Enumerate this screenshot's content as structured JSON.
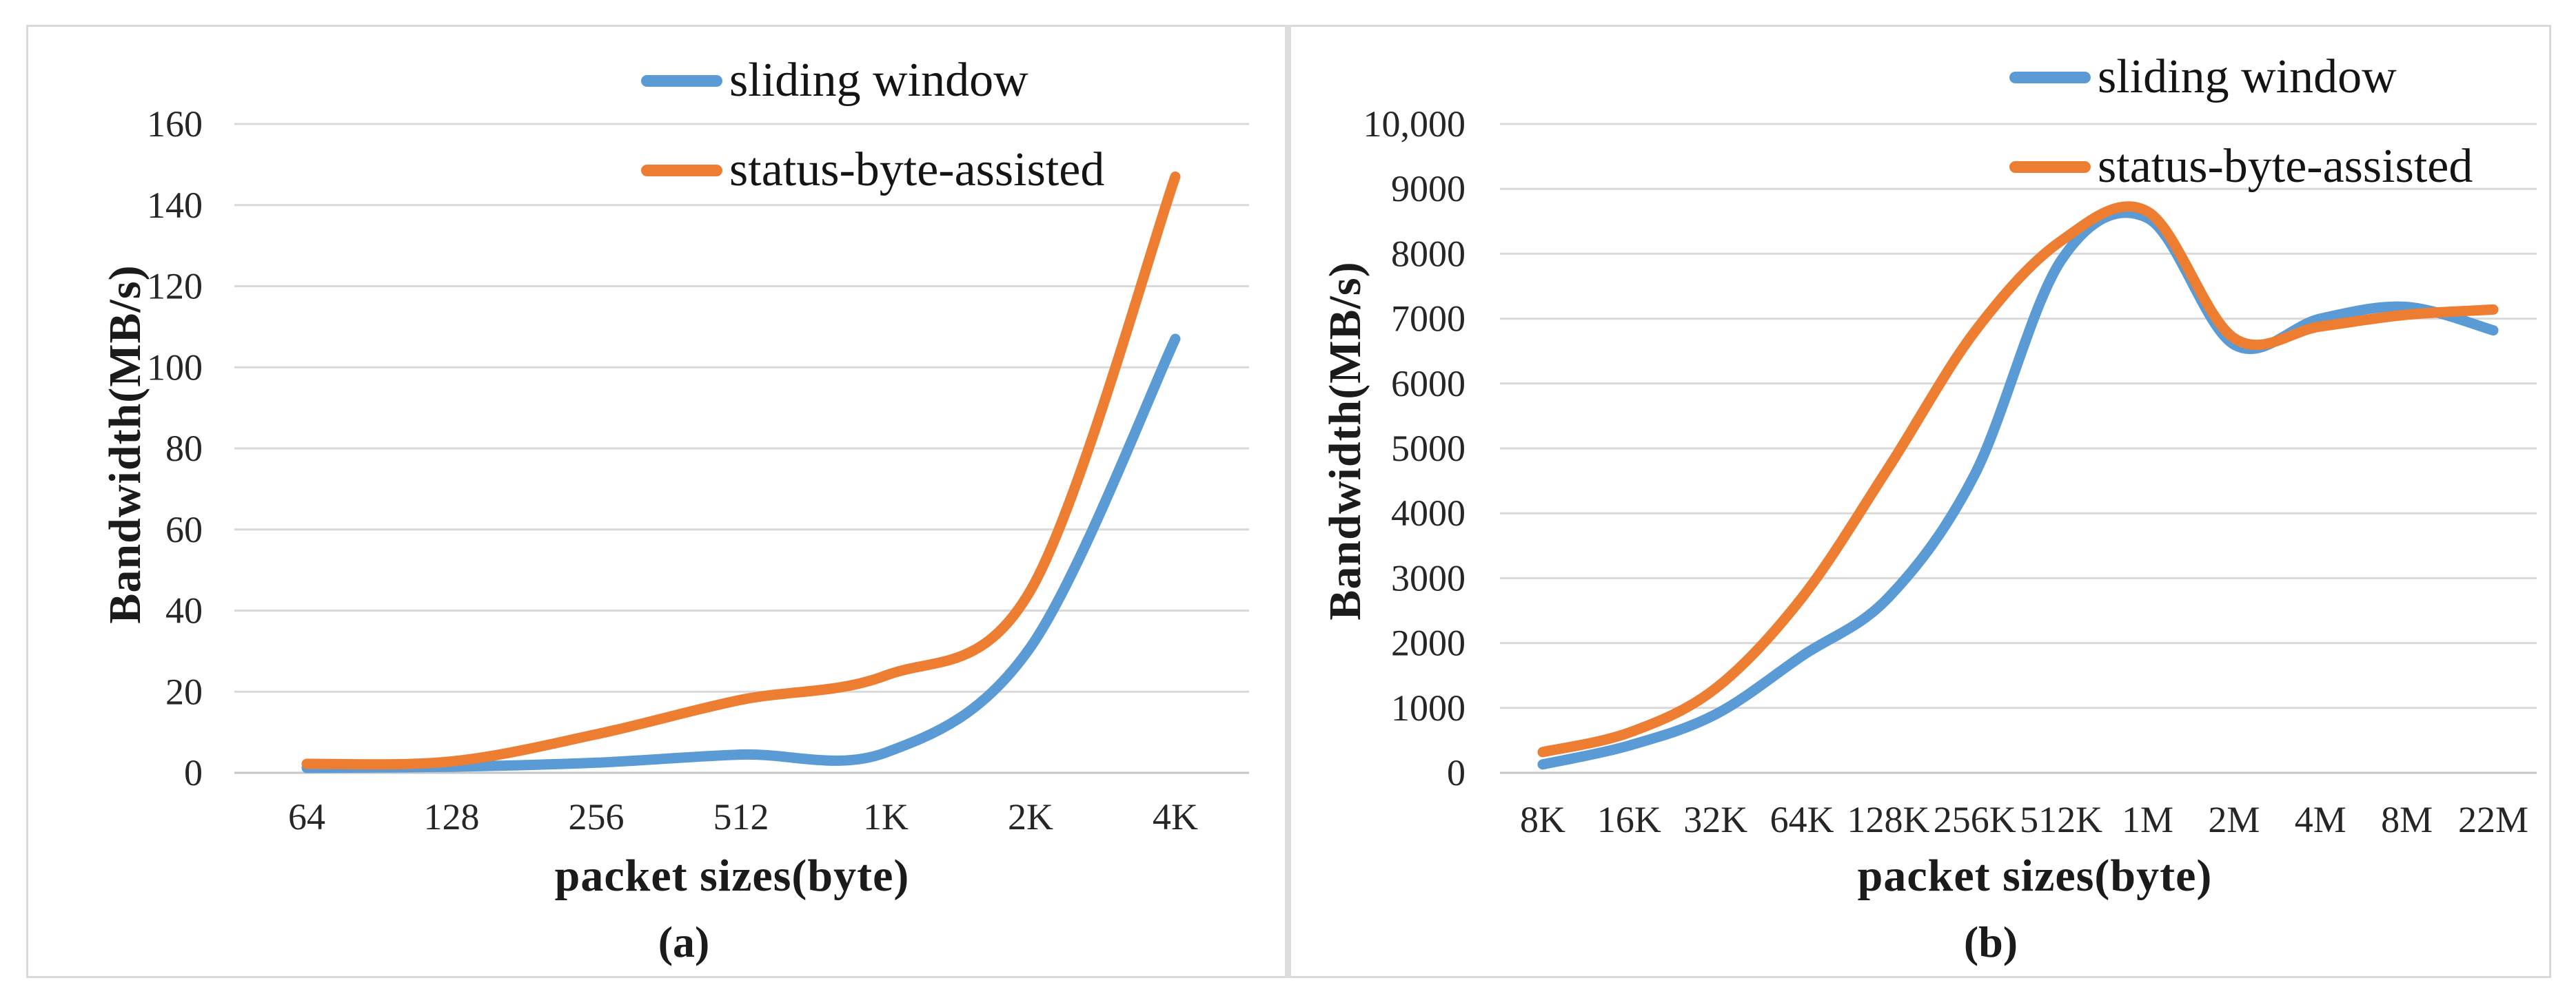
{
  "figure": {
    "background": "#FFFFFF",
    "border_color": "#D9D9D9",
    "divider_color": "#DCDCDC",
    "text_color": "#262626",
    "gridline_color": "#D9D9D9",
    "axis_line_color": "#C6C6C6"
  },
  "chart_data": [
    {
      "type": "line",
      "caption": "(a)",
      "xlabel": "packet sizes(byte)",
      "ylabel": "Bandwidth(MB/s)",
      "categories": [
        "64",
        "128",
        "256",
        "512",
        "1K",
        "2K",
        "4K"
      ],
      "series": [
        {
          "name": "sliding window",
          "color": "#5B9BD5",
          "values": [
            1.2,
            1.5,
            2.5,
            4.5,
            5,
            31,
            107
          ]
        },
        {
          "name": "status-byte-assisted",
          "color": "#ED7D31",
          "values": [
            2.2,
            2.8,
            9.5,
            18,
            24,
            45,
            147
          ]
        }
      ],
      "y_axis": {
        "min": 0,
        "max": 160,
        "step": 20,
        "tick_labels": [
          "0",
          "20",
          "40",
          "60",
          "80",
          "100",
          "120",
          "140",
          "160"
        ]
      },
      "grid": true,
      "smooth": true,
      "legend_position": "top-right"
    },
    {
      "type": "line",
      "caption": "(b)",
      "xlabel": "packet sizes(byte)",
      "ylabel": "Bandwidth(MB/s)",
      "categories": [
        "8K",
        "16K",
        "32K",
        "64K",
        "128K",
        "256K",
        "512K",
        "1M",
        "2M",
        "4M",
        "8M",
        "22M"
      ],
      "series": [
        {
          "name": "sliding window",
          "color": "#5B9BD5",
          "values": [
            130,
            420,
            900,
            1800,
            2700,
            4600,
            7900,
            8550,
            6600,
            7000,
            7180,
            6820
          ]
        },
        {
          "name": "status-byte-assisted",
          "color": "#ED7D31",
          "values": [
            320,
            620,
            1300,
            2700,
            4700,
            6800,
            8200,
            8650,
            6700,
            6880,
            7060,
            7140
          ]
        }
      ],
      "y_axis": {
        "min": 0,
        "max": 10000,
        "step": 1000,
        "tick_labels": [
          "0",
          "1000",
          "2000",
          "3000",
          "4000",
          "5000",
          "6000",
          "7000",
          "8000",
          "9000",
          "10,000"
        ]
      },
      "grid": true,
      "smooth": true,
      "legend_position": "top-right"
    }
  ]
}
